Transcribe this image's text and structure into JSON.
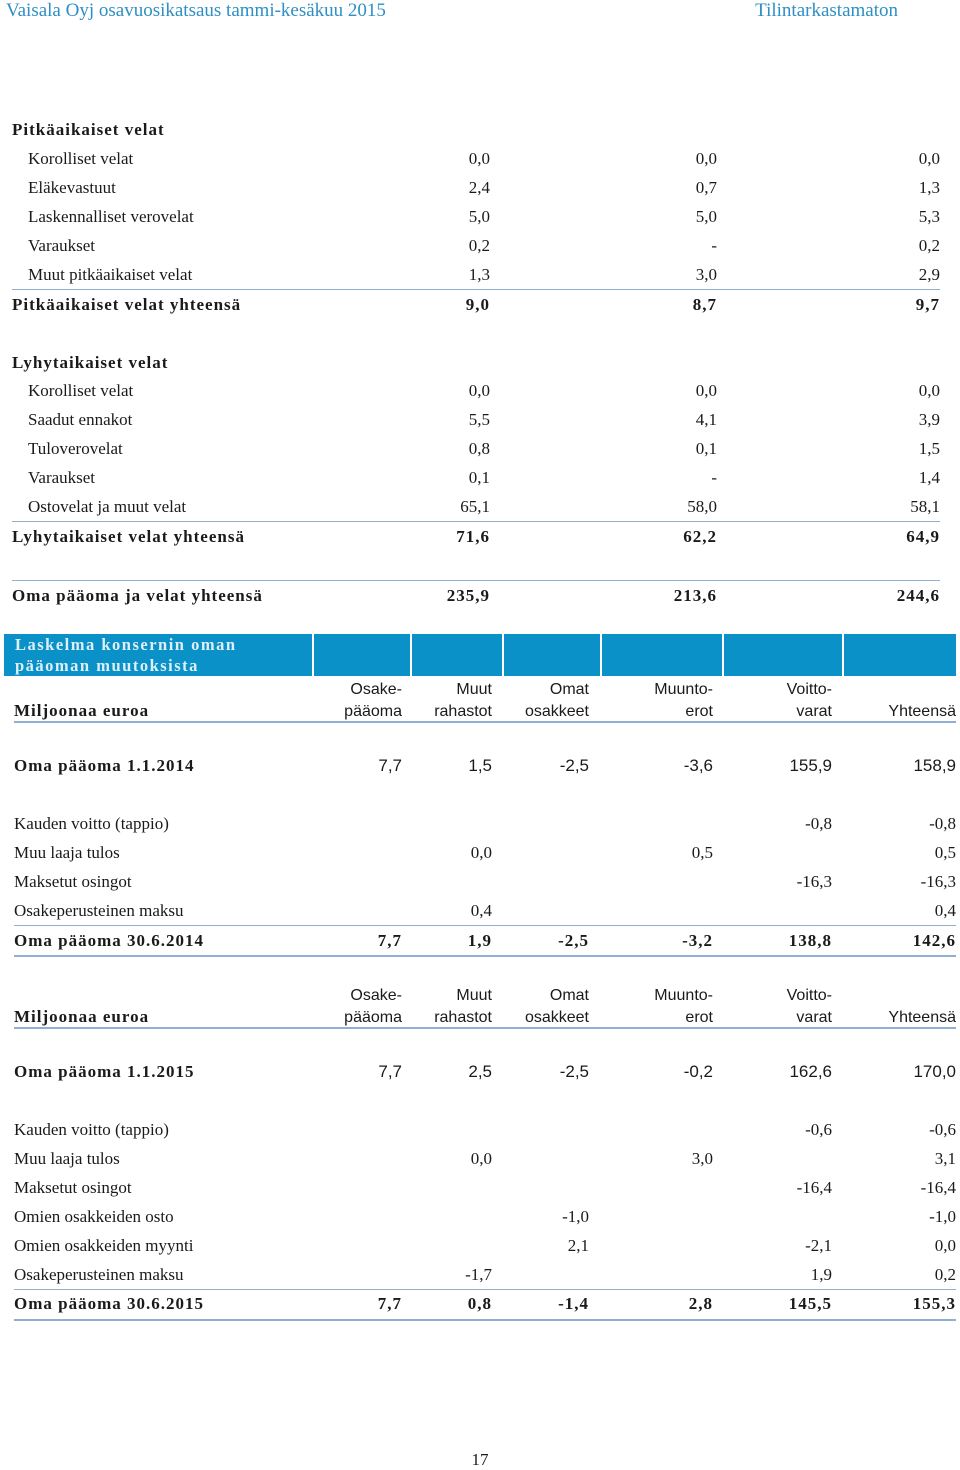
{
  "header": {
    "left": "Vaisala Oyj osavuosikatsaus tammi-kesäkuu 2015",
    "right": "Tilintarkastamaton"
  },
  "balance": {
    "long_term": {
      "title": "Pitkäaikaiset velat",
      "rows": [
        {
          "label": "Korolliset velat",
          "v": [
            "0,0",
            "0,0",
            "0,0"
          ]
        },
        {
          "label": "Eläkevastuut",
          "v": [
            "2,4",
            "0,7",
            "1,3"
          ]
        },
        {
          "label": "Laskennalliset verovelat",
          "v": [
            "5,0",
            "5,0",
            "5,3"
          ]
        },
        {
          "label": "Varaukset",
          "v": [
            "0,2",
            "-",
            "0,2"
          ]
        },
        {
          "label": "Muut pitkäaikaiset velat",
          "v": [
            "1,3",
            "3,0",
            "2,9"
          ]
        }
      ],
      "total": {
        "label": "Pitkäaikaiset velat yhteensä",
        "v": [
          "9,0",
          "8,7",
          "9,7"
        ]
      }
    },
    "short_term": {
      "title": "Lyhytaikaiset velat",
      "rows": [
        {
          "label": "Korolliset velat",
          "v": [
            "0,0",
            "0,0",
            "0,0"
          ]
        },
        {
          "label": "Saadut ennakot",
          "v": [
            "5,5",
            "4,1",
            "3,9"
          ]
        },
        {
          "label": "Tuloverovelat",
          "v": [
            "0,8",
            "0,1",
            "1,5"
          ]
        },
        {
          "label": "Varaukset",
          "v": [
            "0,1",
            "-",
            "1,4"
          ]
        },
        {
          "label": "Ostovelat ja muut velat",
          "v": [
            "65,1",
            "58,0",
            "58,1"
          ]
        }
      ],
      "total": {
        "label": "Lyhytaikaiset velat yhteensä",
        "v": [
          "71,6",
          "62,2",
          "64,9"
        ]
      }
    },
    "grand_total": {
      "label": "Oma pääoma ja velat yhteensä",
      "v": [
        "235,9",
        "213,6",
        "244,6"
      ]
    }
  },
  "equity": {
    "title_line1": "Laskelma konsernin oman",
    "title_line2": "pääoman muutoksista",
    "columns": [
      {
        "top": "Osake-",
        "bottom": "pääoma"
      },
      {
        "top": "Muut",
        "bottom": "rahastot"
      },
      {
        "top": "Omat",
        "bottom": "osakkeet"
      },
      {
        "top": "Muunto-",
        "bottom": "erot"
      },
      {
        "top": "Voitto-",
        "bottom": "varat"
      },
      {
        "top": "",
        "bottom": "Yhteensä"
      }
    ],
    "unit_label": "Miljoonaa euroa",
    "y2014": {
      "opening": {
        "label": "Oma pääoma 1.1.2014",
        "v": [
          "7,7",
          "1,5",
          "-2,5",
          "-3,6",
          "155,9",
          "158,9"
        ]
      },
      "rows": [
        {
          "label": "Kauden voitto (tappio)",
          "v": [
            "",
            "",
            "",
            "",
            "-0,8",
            "-0,8"
          ]
        },
        {
          "label": "Muu laaja tulos",
          "v": [
            "",
            "0,0",
            "",
            "0,5",
            "",
            "0,5"
          ]
        },
        {
          "label": "Maksetut osingot",
          "v": [
            "",
            "",
            "",
            "",
            "-16,3",
            "-16,3"
          ]
        },
        {
          "label": "Osakeperusteinen maksu",
          "v": [
            "",
            "0,4",
            "",
            "",
            "",
            "0,4"
          ]
        }
      ],
      "closing": {
        "label": "Oma pääoma 30.6.2014",
        "v": [
          "7,7",
          "1,9",
          "-2,5",
          "-3,2",
          "138,8",
          "142,6"
        ]
      }
    },
    "y2015": {
      "opening": {
        "label": "Oma pääoma 1.1.2015",
        "v": [
          "7,7",
          "2,5",
          "-2,5",
          "-0,2",
          "162,6",
          "170,0"
        ]
      },
      "rows": [
        {
          "label": "Kauden voitto (tappio)",
          "v": [
            "",
            "",
            "",
            "",
            "-0,6",
            "-0,6"
          ]
        },
        {
          "label": "Muu laaja tulos",
          "v": [
            "",
            "0,0",
            "",
            "3,0",
            "",
            "3,1"
          ]
        },
        {
          "label": "Maksetut osingot",
          "v": [
            "",
            "",
            "",
            "",
            "-16,4",
            "-16,4"
          ]
        },
        {
          "label": "Omien osakkeiden osto",
          "v": [
            "",
            "",
            "-1,0",
            "",
            "",
            "-1,0"
          ]
        },
        {
          "label": "Omien osakkeiden myynti",
          "v": [
            "",
            "",
            "2,1",
            "",
            "-2,1",
            "0,0"
          ]
        },
        {
          "label": "Osakeperusteinen maksu",
          "v": [
            "",
            "-1,7",
            "",
            "",
            "1,9",
            "0,2"
          ]
        }
      ],
      "closing": {
        "label": "Oma pääoma 30.6.2015",
        "v": [
          "7,7",
          "0,8",
          "-1,4",
          "2,8",
          "145,5",
          "155,3"
        ]
      }
    }
  },
  "page_number": "17"
}
